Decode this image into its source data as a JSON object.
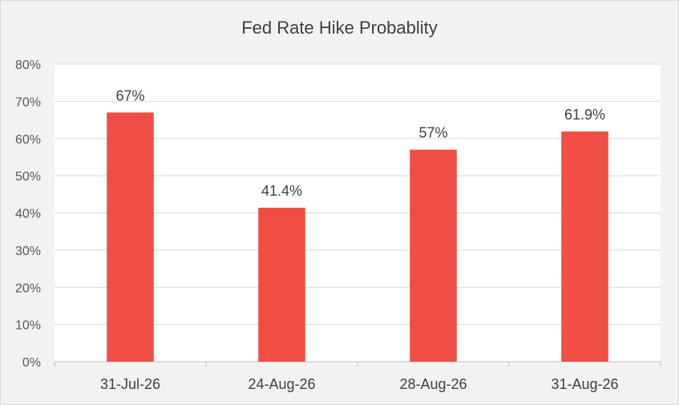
{
  "chart_data": {
    "type": "bar",
    "title": "Fed Rate Hike Probablity",
    "categories": [
      "31-Jul-26",
      "24-Aug-26",
      "28-Aug-26",
      "31-Aug-26"
    ],
    "values": [
      67,
      41.4,
      57,
      61.9
    ],
    "data_labels": [
      "67%",
      "41.4%",
      "57%",
      "61.9%"
    ],
    "ylim": [
      0,
      80
    ],
    "y_ticks": [
      0,
      10,
      20,
      30,
      40,
      50,
      60,
      70,
      80
    ],
    "y_tick_labels": [
      "0%",
      "10%",
      "20%",
      "30%",
      "40%",
      "50%",
      "60%",
      "70%",
      "80%"
    ],
    "xlabel": "",
    "ylabel": "",
    "grid": true,
    "legend": "none",
    "bar_color": "#f04e45",
    "plot_background": "#ffffff",
    "chart_background": "#f2f2f2"
  }
}
